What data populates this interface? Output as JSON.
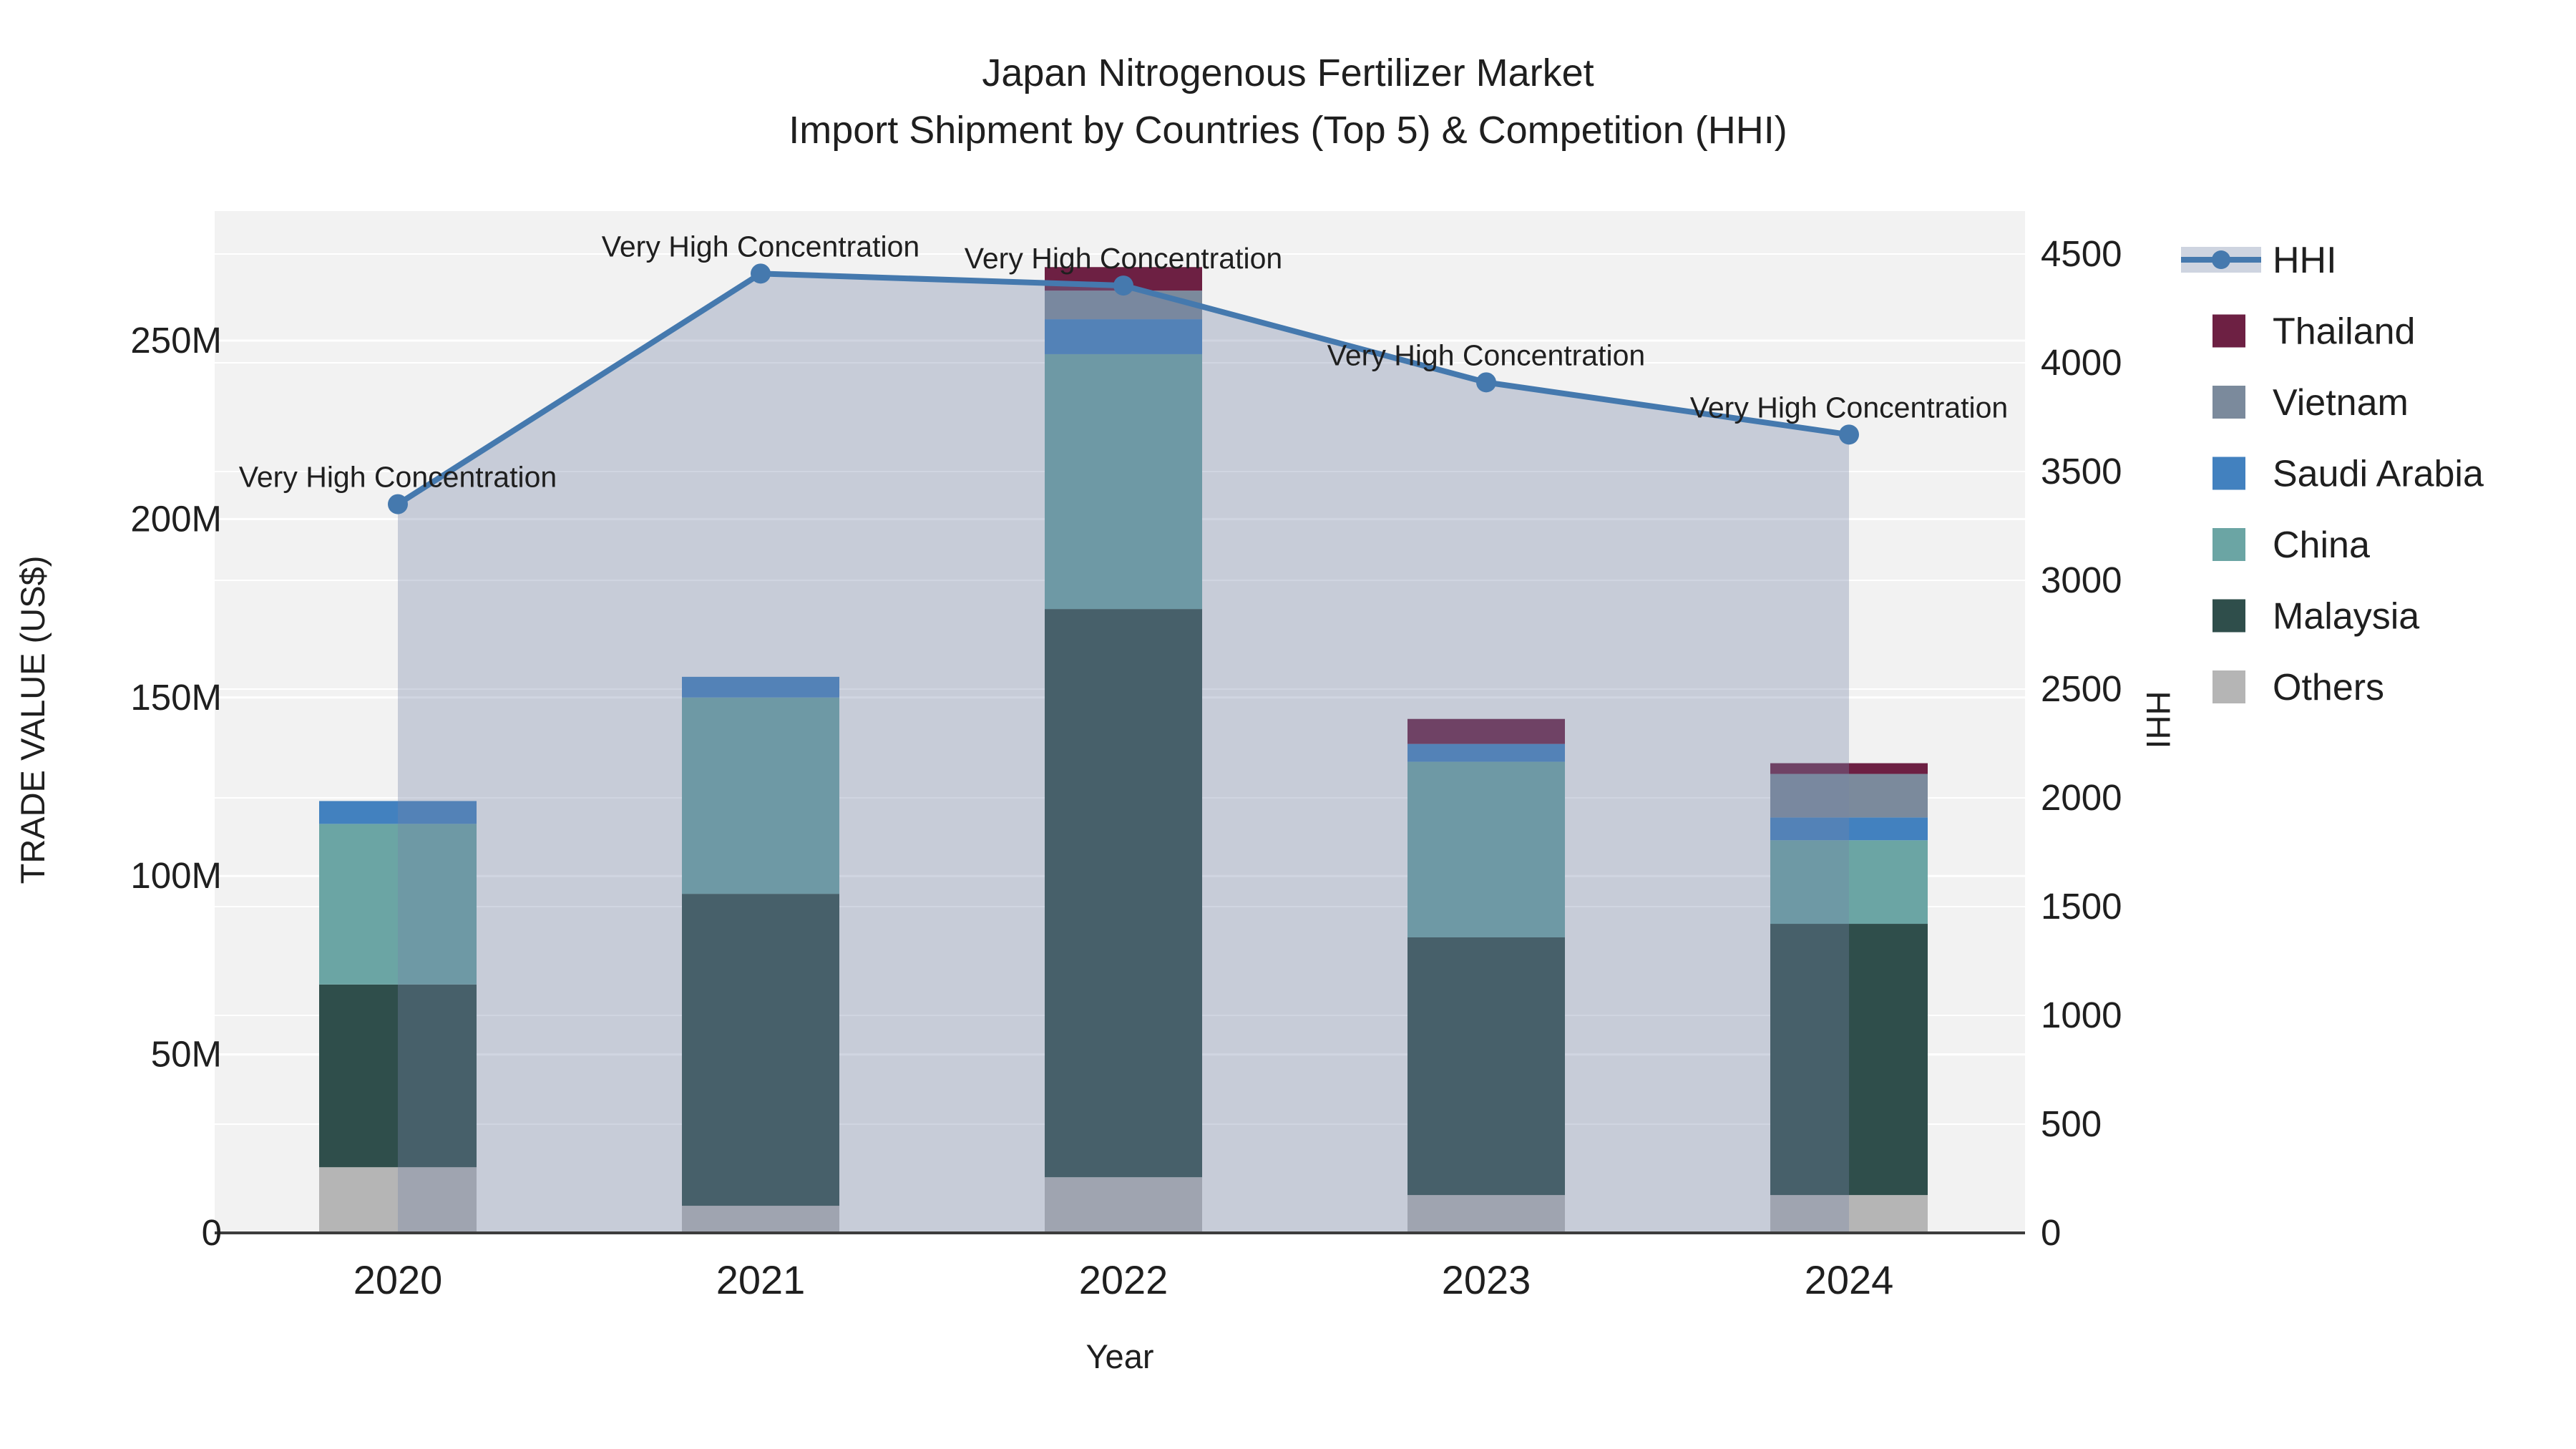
{
  "title": {
    "line1": "Japan Nitrogenous Fertilizer Market",
    "line2": "Import Shipment by Countries (Top 5) & Competition (HHI)"
  },
  "chart_data": {
    "type": "stacked-bar+line",
    "title": "Japan Nitrogenous Fertilizer Market",
    "subtitle": "Import Shipment by Countries (Top 5) & Competition (HHI)",
    "xlabel": "Year",
    "ylabel_left": "TRADE VALUE (US$)",
    "ylabel_right": "HHI",
    "categories": [
      "2020",
      "2021",
      "2022",
      "2023",
      "2024"
    ],
    "bar_series_bottom_to_top": [
      {
        "name": "Others",
        "color": "#b5b5b5",
        "values_M": [
          18.4,
          7.6,
          15.6,
          10.6,
          10.6
        ]
      },
      {
        "name": "Malaysia",
        "color": "#2f4e4b",
        "values_M": [
          51.2,
          87.4,
          159.2,
          72.2,
          76.0
        ]
      },
      {
        "name": "China",
        "color": "#6ba5a4",
        "values_M": [
          45.0,
          55.0,
          71.4,
          49.2,
          23.4
        ]
      },
      {
        "name": "Saudi Arabia",
        "color": "#4281bf",
        "values_M": [
          6.4,
          5.8,
          9.8,
          5.0,
          6.4
        ]
      },
      {
        "name": "Vietnam",
        "color": "#7b8a9c",
        "values_M": [
          0,
          0,
          8.0,
          0,
          12.2
        ]
      },
      {
        "name": "Thailand",
        "color": "#6d2043",
        "values_M": [
          0,
          0,
          6.6,
          7.0,
          3.0
        ]
      }
    ],
    "bar_totals_M": [
      121.0,
      155.8,
      270.6,
      144.0,
      131.6
    ],
    "line_series": {
      "name": "HHI",
      "color": "#4579ae",
      "area_fill": "rgba(116,132,168,0.34)",
      "values": [
        3350,
        4410,
        4355,
        3910,
        3670
      ]
    },
    "annotations": [
      "Very High Concentration",
      "Very High Concentration",
      "Very High Concentration",
      "Very High Concentration",
      "Very High Concentration"
    ],
    "axes": {
      "left": {
        "tick_labels": [
          "0",
          "50M",
          "100M",
          "150M",
          "200M",
          "250M"
        ],
        "tick_values": [
          0,
          50,
          100,
          150,
          200,
          250
        ],
        "range_M": [
          0,
          286
        ]
      },
      "right": {
        "tick_labels": [
          "0",
          "500",
          "1000",
          "1500",
          "2000",
          "2500",
          "3000",
          "3500",
          "4000",
          "4500"
        ],
        "tick_values": [
          0,
          500,
          1000,
          1500,
          2000,
          2500,
          3000,
          3500,
          4000,
          4500
        ],
        "range": [
          0,
          4500
        ]
      },
      "grid": "on",
      "plot_background": "#f2f2f2",
      "gridline_color": "#ffffff",
      "axis_line_color": "#3c3c3c"
    },
    "legend": {
      "position": "right",
      "items": [
        {
          "label": "HHI",
          "type": "line",
          "color": "#4579ae",
          "band_color": "#ced4e0"
        },
        {
          "label": "Thailand",
          "type": "swatch",
          "color": "#6d2043"
        },
        {
          "label": "Vietnam",
          "type": "swatch",
          "color": "#7b8a9c"
        },
        {
          "label": "Saudi Arabia",
          "type": "swatch",
          "color": "#4281bf"
        },
        {
          "label": "China",
          "type": "swatch",
          "color": "#6ba5a4"
        },
        {
          "label": "Malaysia",
          "type": "swatch",
          "color": "#2f4e4b"
        },
        {
          "label": "Others",
          "type": "swatch",
          "color": "#b5b5b5"
        }
      ]
    }
  }
}
